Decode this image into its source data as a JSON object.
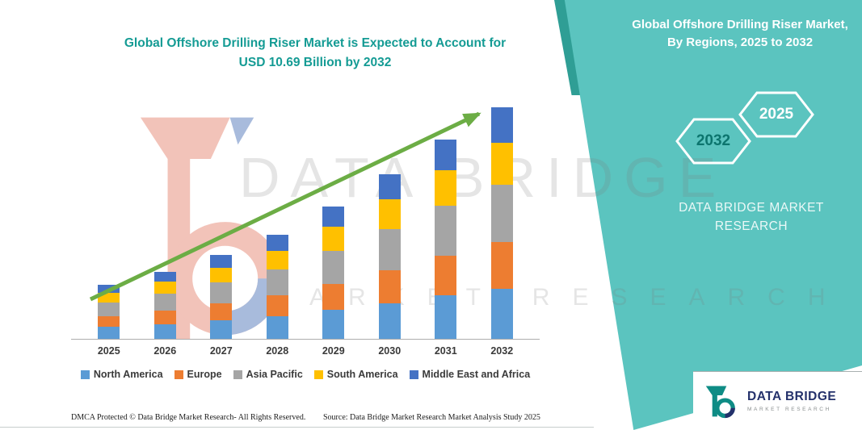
{
  "header": {
    "title_line1": "Global Offshore Drilling Riser Market is Expected to Account for",
    "title_line2": "USD 10.69 Billion by 2032"
  },
  "side_panel": {
    "heading": "Global Offshore Drilling Riser Market, By Regions, 2025 to 2032",
    "hexagon_left": "2032",
    "hexagon_right": "2025",
    "brand_line1": "DATA BRIDGE MARKET",
    "brand_line2": "RESEARCH"
  },
  "watermark": {
    "line1": "DATA BRIDGE",
    "line2": "MARKET RESEARCH"
  },
  "chart_data": {
    "type": "bar",
    "stacked": true,
    "title": "Global Offshore Drilling Riser Market, By Regions, 2025 to 2032",
    "unit": "USD Billion",
    "categories": [
      "2025",
      "2026",
      "2027",
      "2028",
      "2029",
      "2030",
      "2031",
      "2032"
    ],
    "series": [
      {
        "name": "North America",
        "color": "#5B9BD5",
        "values": [
          0.55,
          0.68,
          0.85,
          1.05,
          1.33,
          1.66,
          2.0,
          2.33
        ]
      },
      {
        "name": "Europe",
        "color": "#ED7D31",
        "values": [
          0.5,
          0.62,
          0.78,
          0.96,
          1.22,
          1.52,
          1.84,
          2.14
        ]
      },
      {
        "name": "Asia Pacific",
        "color": "#A5A5A5",
        "values": [
          0.62,
          0.78,
          0.97,
          1.2,
          1.53,
          1.9,
          2.3,
          2.67
        ]
      },
      {
        "name": "South America",
        "color": "#FFC000",
        "values": [
          0.45,
          0.56,
          0.7,
          0.86,
          1.1,
          1.37,
          1.65,
          1.92
        ]
      },
      {
        "name": "Middle East and Africa",
        "color": "#4472C4",
        "values": [
          0.38,
          0.47,
          0.59,
          0.73,
          0.92,
          1.15,
          1.41,
          1.63
        ]
      }
    ],
    "totals": [
      2.5,
      3.11,
      3.89,
      4.8,
      6.1,
      7.6,
      9.2,
      10.69
    ],
    "ylim": [
      0,
      11
    ],
    "grid": false,
    "legend_position": "bottom",
    "annotation": "Upward trend arrow; total reaches USD 10.69 Billion by 2032"
  },
  "footer": {
    "dmca": "DMCA Protected © Data Bridge Market Research-  All Rights Reserved.",
    "source": "Source: Data Bridge Market Research  Market Analysis Study 2025"
  },
  "logo": {
    "name": "DATA BRIDGE",
    "tagline": "MARKET RESEARCH"
  },
  "colors": {
    "teal_panel": "#5BC4BF",
    "teal_dark_accent": "#2F9E95",
    "title_teal": "#149B94",
    "arrow_green": "#6CAD45",
    "logo_navy": "#24316B",
    "logo_teal": "#0E8C85",
    "watermark_salmon": "#E5836F",
    "watermark_blue": "#4A72B8",
    "hex_2032_text": "#0C756E"
  }
}
